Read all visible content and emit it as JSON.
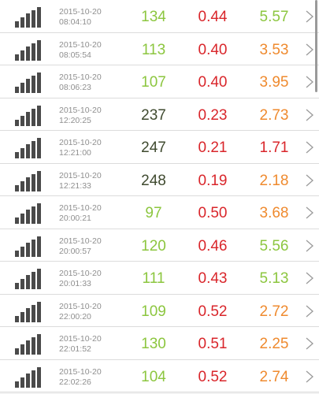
{
  "colors": {
    "green": "#8cc63f",
    "dark": "#3f4a2f",
    "red": "#d9262b",
    "orange": "#ef8a2e"
  },
  "icons": {
    "signal": "signal-bars-icon",
    "chevron": "chevron-right-icon"
  },
  "rows": [
    {
      "date": "2015-10-20",
      "time": "08:04:10",
      "v1": "134",
      "v2": "0.44",
      "v3": "5.57",
      "c1": "green",
      "c3": "green"
    },
    {
      "date": "2015-10-20",
      "time": "08:05:54",
      "v1": "113",
      "v2": "0.40",
      "v3": "3.53",
      "c1": "green",
      "c3": "orange"
    },
    {
      "date": "2015-10-20",
      "time": "08:06:23",
      "v1": "107",
      "v2": "0.40",
      "v3": "3.95",
      "c1": "green",
      "c3": "orange"
    },
    {
      "date": "2015-10-20",
      "time": "12:20:25",
      "v1": "237",
      "v2": "0.23",
      "v3": "2.73",
      "c1": "dark",
      "c3": "orange"
    },
    {
      "date": "2015-10-20",
      "time": "12:21:00",
      "v1": "247",
      "v2": "0.21",
      "v3": "1.71",
      "c1": "dark",
      "c3": "red"
    },
    {
      "date": "2015-10-20",
      "time": "12:21:33",
      "v1": "248",
      "v2": "0.19",
      "v3": "2.18",
      "c1": "dark",
      "c3": "orange"
    },
    {
      "date": "2015-10-20",
      "time": "20:00:21",
      "v1": "97",
      "v2": "0.50",
      "v3": "3.68",
      "c1": "green",
      "c3": "orange"
    },
    {
      "date": "2015-10-20",
      "time": "20:00:57",
      "v1": "120",
      "v2": "0.46",
      "v3": "5.56",
      "c1": "green",
      "c3": "green"
    },
    {
      "date": "2015-10-20",
      "time": "20:01:33",
      "v1": "111",
      "v2": "0.43",
      "v3": "5.13",
      "c1": "green",
      "c3": "green"
    },
    {
      "date": "2015-10-20",
      "time": "22:00:20",
      "v1": "109",
      "v2": "0.52",
      "v3": "2.72",
      "c1": "green",
      "c3": "orange"
    },
    {
      "date": "2015-10-20",
      "time": "22:01:52",
      "v1": "130",
      "v2": "0.51",
      "v3": "2.25",
      "c1": "green",
      "c3": "orange"
    },
    {
      "date": "2015-10-20",
      "time": "22:02:26",
      "v1": "104",
      "v2": "0.52",
      "v3": "2.74",
      "c1": "green",
      "c3": "orange"
    }
  ]
}
